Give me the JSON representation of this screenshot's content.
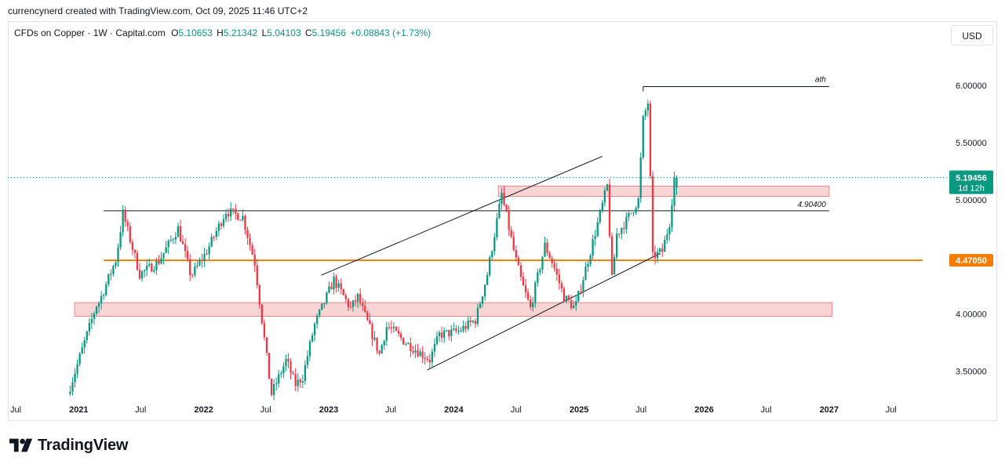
{
  "attribution": "currencynerd created with TradingView.com, Oct 09, 2025 11:46 UTC+2",
  "header": {
    "symbol": "CFDs on Copper · 1W · Capital.com",
    "open_label": "O",
    "open": "5.10653",
    "high_label": "H",
    "high": "5.21342",
    "low_label": "L",
    "low": "5.04103",
    "close_label": "C",
    "close": "5.19456",
    "change": "+0.08843 (+1.73%)",
    "currency": "USD"
  },
  "brand": {
    "name": "TradingView"
  },
  "colors": {
    "up": "#089981",
    "down": "#f23645",
    "support": "#f57c00",
    "zone": "#f7c5c7",
    "zone_border": "#e57373",
    "price_tag": "#089981"
  },
  "chart_data": {
    "type": "candlestick",
    "x_axis": {
      "start": "2020-07-01",
      "end": "2027-10-01",
      "ticks": [
        {
          "date": "2020-07-01",
          "label": "Jul"
        },
        {
          "date": "2021-01-01",
          "label": "2021"
        },
        {
          "date": "2021-07-01",
          "label": "Jul"
        },
        {
          "date": "2022-01-01",
          "label": "2022"
        },
        {
          "date": "2022-07-01",
          "label": "Jul"
        },
        {
          "date": "2023-01-01",
          "label": "2023"
        },
        {
          "date": "2023-07-01",
          "label": "Jul"
        },
        {
          "date": "2024-01-01",
          "label": "2024"
        },
        {
          "date": "2024-07-01",
          "label": "Jul"
        },
        {
          "date": "2025-01-01",
          "label": "2025"
        },
        {
          "date": "2025-07-01",
          "label": "Jul"
        },
        {
          "date": "2026-01-01",
          "label": "2026"
        },
        {
          "date": "2026-07-01",
          "label": "Jul"
        },
        {
          "date": "2027-01-01",
          "label": "2027"
        },
        {
          "date": "2027-07-01",
          "label": "Jul"
        }
      ]
    },
    "y_axis": {
      "min": 3.25,
      "max": 6.35,
      "ticks": [
        "3.50000",
        "4.00000",
        "4.50000",
        "5.00000",
        "5.50000",
        "6.00000"
      ]
    },
    "last_price": {
      "value": 5.19456,
      "label": "5.19456",
      "countdown": "1d 12h"
    },
    "key_prices": [
      {
        "value": 4.904,
        "label": "4.90400",
        "from": "2021-03-15",
        "to": "2027-01-01",
        "color": "#131722"
      },
      {
        "value": 4.4705,
        "label": "4.47050",
        "from": "2021-03-15",
        "to": "2027-10-01",
        "color": "#f57c00"
      }
    ],
    "ath": {
      "label": "ath",
      "value": 5.99,
      "from": "2025-07-07",
      "to": "2027-01-01"
    },
    "zones": [
      {
        "from": "2024-05-10",
        "to": "2027-01-01",
        "low": 5.03,
        "high": 5.12
      },
      {
        "from": "2020-12-20",
        "to": "2027-01-10",
        "low": 3.98,
        "high": 4.1
      }
    ],
    "trendlines": [
      {
        "x1": "2022-12-10",
        "y1": 4.34,
        "x2": "2025-03-10",
        "y2": 5.38
      },
      {
        "x1": "2023-10-15",
        "y1": 3.51,
        "x2": "2025-08-25",
        "y2": 4.53
      }
    ],
    "anchors": [
      [
        "2020-11-30",
        3.3
      ],
      [
        "2021-02-22",
        4.08
      ],
      [
        "2021-03-01",
        4.1
      ],
      [
        "2021-04-20",
        4.48
      ],
      [
        "2021-05-10",
        4.88
      ],
      [
        "2021-06-28",
        4.35
      ],
      [
        "2021-08-20",
        4.45
      ],
      [
        "2021-10-18",
        4.75
      ],
      [
        "2021-11-25",
        4.33
      ],
      [
        "2022-01-10",
        4.55
      ],
      [
        "2022-03-07",
        4.9
      ],
      [
        "2022-04-25",
        4.85
      ],
      [
        "2022-05-30",
        4.45
      ],
      [
        "2022-07-11",
        3.45
      ],
      [
        "2022-07-18",
        3.3
      ],
      [
        "2022-08-30",
        3.6
      ],
      [
        "2022-09-25",
        3.38
      ],
      [
        "2022-10-17",
        3.45
      ],
      [
        "2022-11-20",
        3.9
      ],
      [
        "2023-01-16",
        4.3
      ],
      [
        "2023-03-06",
        4.05
      ],
      [
        "2023-03-27",
        4.15
      ],
      [
        "2023-05-29",
        3.65
      ],
      [
        "2023-06-20",
        3.9
      ],
      [
        "2023-08-14",
        3.75
      ],
      [
        "2023-10-23",
        3.6
      ],
      [
        "2023-11-20",
        3.82
      ],
      [
        "2024-01-15",
        3.85
      ],
      [
        "2024-03-05",
        3.95
      ],
      [
        "2024-04-08",
        4.35
      ],
      [
        "2024-05-20",
        5.05
      ],
      [
        "2024-06-28",
        4.5
      ],
      [
        "2024-07-20",
        4.25
      ],
      [
        "2024-08-12",
        4.05
      ],
      [
        "2024-09-23",
        4.6
      ],
      [
        "2024-10-15",
        4.45
      ],
      [
        "2024-11-18",
        4.15
      ],
      [
        "2024-12-20",
        4.05
      ],
      [
        "2025-02-03",
        4.55
      ],
      [
        "2025-03-24",
        5.12
      ],
      [
        "2025-04-07",
        4.3
      ],
      [
        "2025-04-21",
        4.7
      ],
      [
        "2025-05-20",
        4.82
      ],
      [
        "2025-06-23",
        5.0
      ],
      [
        "2025-07-07",
        5.7
      ],
      [
        "2025-07-21",
        5.85
      ],
      [
        "2025-08-04",
        4.5
      ],
      [
        "2025-09-01",
        4.55
      ],
      [
        "2025-09-22",
        4.8
      ],
      [
        "2025-10-06",
        5.19
      ]
    ]
  }
}
